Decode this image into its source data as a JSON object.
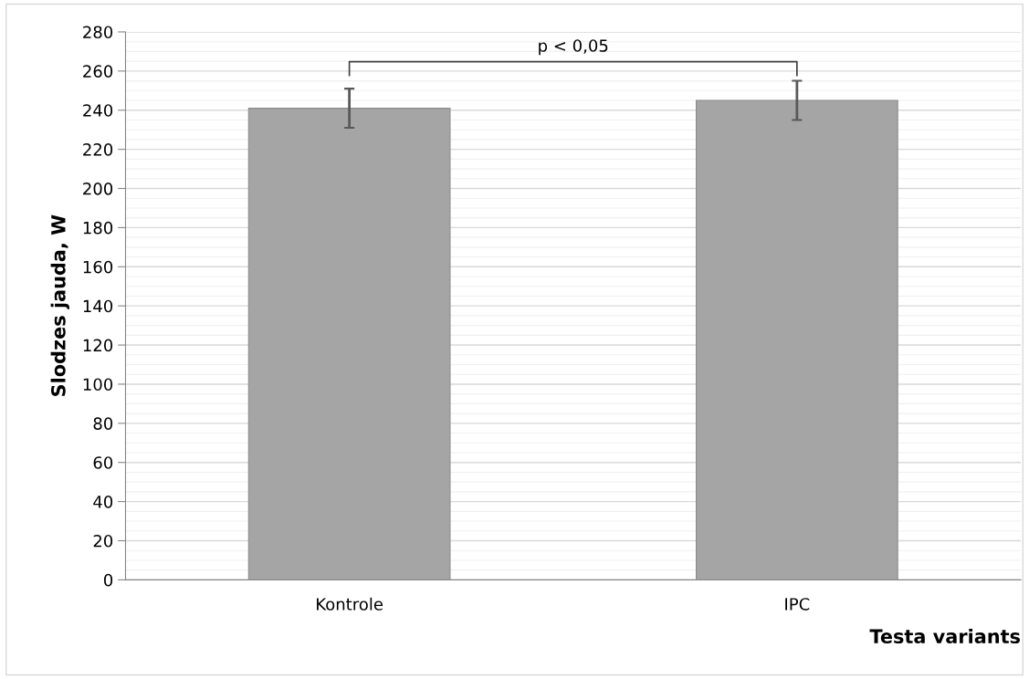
{
  "chart_data": {
    "type": "bar",
    "xlabel": "Testa variants",
    "ylabel": "Slodzes jauda, W",
    "categories": [
      "Kontrole",
      "IPC"
    ],
    "values": [
      241,
      245
    ],
    "errors": [
      10,
      10
    ],
    "color": "#a5a5a5",
    "ylim": [
      0,
      280
    ],
    "yticks": [
      0,
      20,
      40,
      60,
      80,
      100,
      120,
      140,
      160,
      180,
      200,
      220,
      240,
      260,
      280
    ],
    "grid": "y",
    "annotations": [
      "p < 0,05"
    ]
  }
}
